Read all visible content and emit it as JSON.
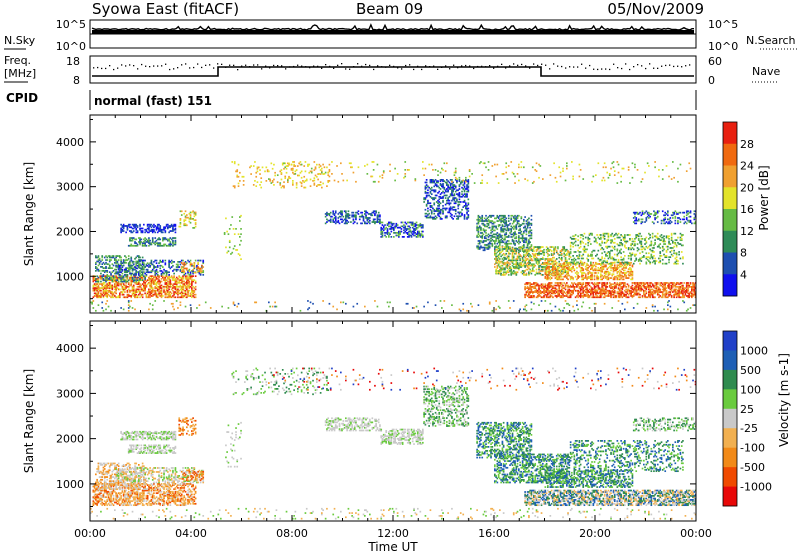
{
  "header": {
    "station": "Syowa East (fitACF)",
    "beam": "Beam 09",
    "date": "05/Nov/2009"
  },
  "noise_panel": {
    "left_label": "N.Sky",
    "right_label": "N.Search",
    "left_ticks": [
      "10^5",
      "10^0"
    ],
    "right_ticks": [
      "10^5",
      "10^0"
    ]
  },
  "freq_panel": {
    "left_label_1": "Freq.",
    "left_label_2": "[MHz]",
    "left_ticks": [
      "18",
      "8"
    ],
    "right_label": "Nave",
    "right_ticks": [
      "60",
      "0"
    ]
  },
  "cpid": {
    "label": "CPID",
    "value": "normal (fast) 151"
  },
  "colors": {
    "power": [
      "#1010ee",
      "#1e4fb0",
      "#2e8b57",
      "#66bb44",
      "#e3e32a",
      "#f0a030",
      "#f06a10",
      "#e82010"
    ],
    "velocity": [
      "#e80808",
      "#f04a00",
      "#f28a18",
      "#f2b050",
      "#c9c9c9",
      "#6acb3e",
      "#2f8b4f",
      "#1e5fb5",
      "#2040c8"
    ]
  },
  "chart_data": [
    {
      "type": "heatmap",
      "title": "Power",
      "x_ticks": [
        "00:00",
        "04:00",
        "08:00",
        "12:00",
        "16:00",
        "20:00",
        "00:00"
      ],
      "xlabel": "Time UT",
      "ylabel": "Slant Range [km]",
      "y_ticks": [
        "1000",
        "2000",
        "3000",
        "4000"
      ],
      "ylim": [
        180,
        4600
      ],
      "colorbar_label": "Power [dB]",
      "colorbar_ticks": [
        "4",
        "8",
        "12",
        "16",
        "20",
        "24",
        "28"
      ],
      "colorbar_range": [
        0,
        32
      ]
    },
    {
      "type": "heatmap",
      "title": "Velocity",
      "x_ticks": [
        "00:00",
        "04:00",
        "08:00",
        "12:00",
        "16:00",
        "20:00",
        "00:00"
      ],
      "xlabel": "Time UT",
      "ylabel": "Slant Range [km]",
      "y_ticks": [
        "1000",
        "2000",
        "3000",
        "4000"
      ],
      "ylim": [
        180,
        4600
      ],
      "colorbar_label": "Velocity [m s-1]",
      "colorbar_ticks": [
        "1000",
        "500",
        "100",
        "25",
        "-25",
        "-100",
        "-500",
        "-1000"
      ]
    }
  ]
}
